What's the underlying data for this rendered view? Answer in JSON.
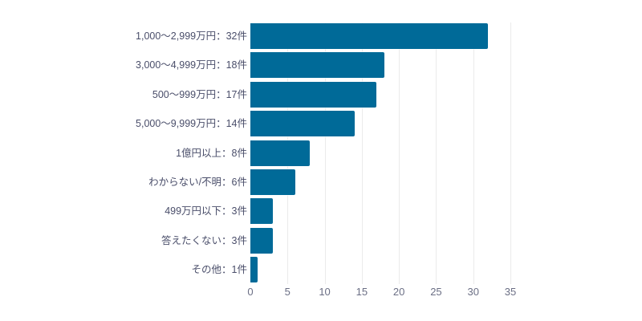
{
  "chart_data": {
    "type": "bar",
    "orientation": "horizontal",
    "title": "",
    "xlabel": "",
    "ylabel": "",
    "xlim": [
      0,
      35
    ],
    "grid": true,
    "color": "#006a98",
    "categories": [
      "1,000～2,999万円",
      "3,000～4,999万円",
      "500～999万円",
      "5,000～9,999万円",
      "1億円以上",
      "わからない/不明",
      "499万円以下",
      "答えたくない",
      "その他"
    ],
    "values": [
      32,
      18,
      17,
      14,
      8,
      6,
      3,
      3,
      1
    ],
    "labels": [
      "1,000～2,999万円：32件",
      "3,000～4,999万円：18件",
      "500～999万円：17件",
      "5,000～9,999万円：14件",
      "1億円以上：8件",
      "わからない/不明：6件",
      "499万円以下：3件",
      "答えたくない：3件",
      "その他：1件"
    ],
    "x_ticks": [
      "0",
      "5",
      "10",
      "15",
      "20",
      "25",
      "30",
      "35"
    ]
  }
}
